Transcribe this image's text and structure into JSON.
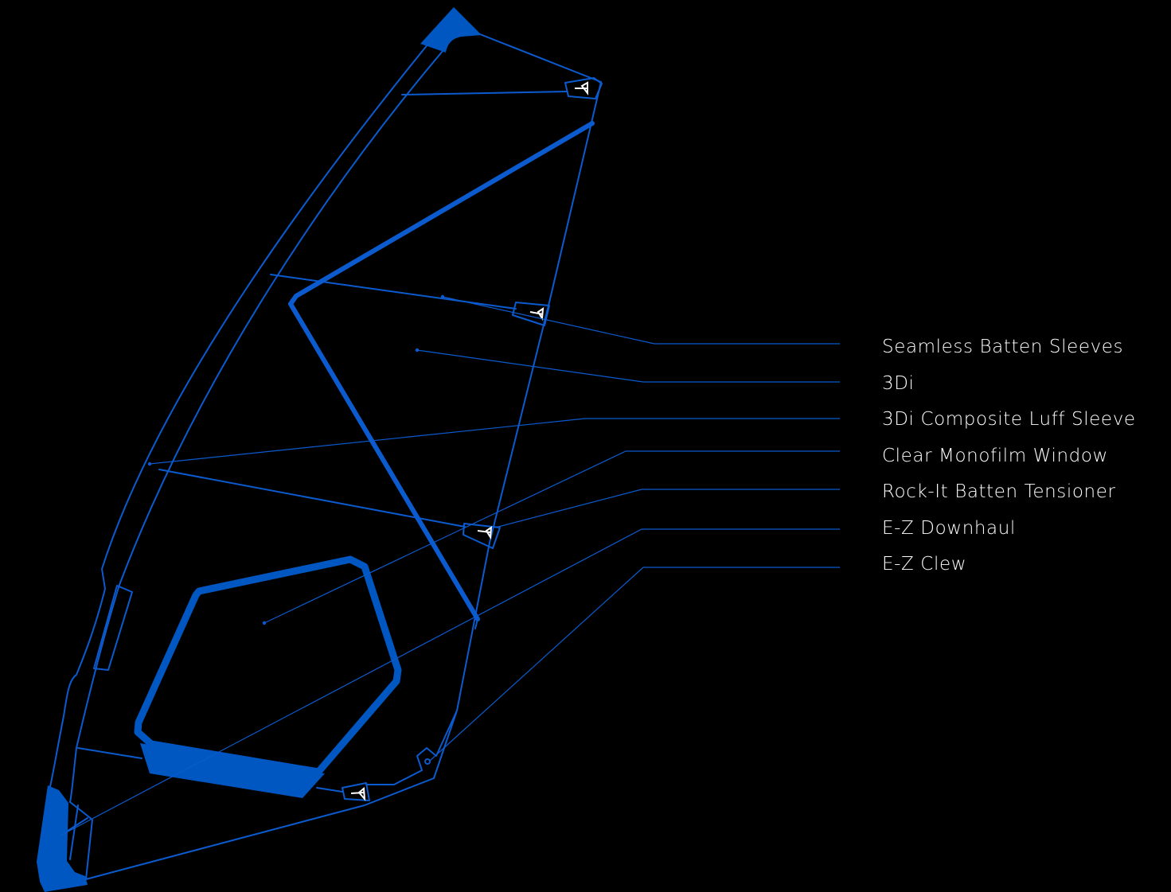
{
  "diagram": {
    "colors": {
      "background": "#000000",
      "outline": "#0b5bcf",
      "panel_fill": "#0057c2",
      "leader": "#0b5bcf",
      "label_text": "#ffffff"
    },
    "features": [
      {
        "id": "seamless-batten-sleeves",
        "label": "Seamless Batten Sleeves"
      },
      {
        "id": "3di",
        "label": "3Di"
      },
      {
        "id": "3di-composite-luff-sleeve",
        "label": "3Di Composite Luff Sleeve"
      },
      {
        "id": "clear-monofilm-window",
        "label": "Clear Monofilm Window"
      },
      {
        "id": "rock-it-batten-tensioner",
        "label": "Rock-It Batten Tensioner"
      },
      {
        "id": "e-z-downhaul",
        "label": "E-Z Downhaul"
      },
      {
        "id": "e-z-clew",
        "label": "E-Z Clew"
      }
    ]
  }
}
